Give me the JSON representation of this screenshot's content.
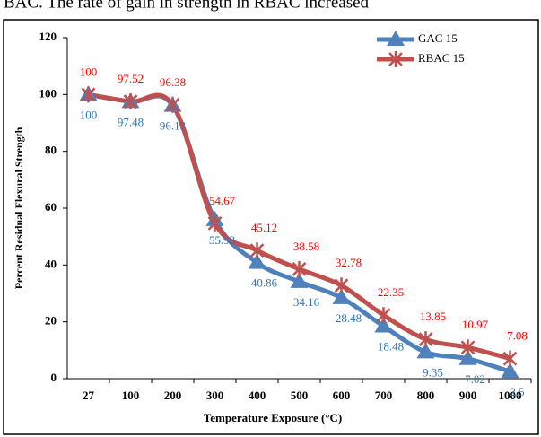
{
  "caption": "BAC. The rate of gain in strength in RBAC increased",
  "chart_data": {
    "type": "line",
    "x_label": "Temperature Exposure (°C)",
    "y_label": "Percent Residual Flexural Strength",
    "categories": [
      "27",
      "100",
      "200",
      "300",
      "400",
      "500",
      "600",
      "700",
      "800",
      "900",
      "1000"
    ],
    "series": [
      {
        "name": "GAC 15",
        "color": "#4f81bd",
        "label_color": "#2e75b6",
        "marker": "triangle",
        "values": [
          100,
          97.48,
          96.13,
          55.93,
          40.86,
          34.16,
          28.48,
          18.48,
          9.35,
          7.02,
          2.5
        ]
      },
      {
        "name": "RBAC 15",
        "color": "#c0504d",
        "label_color": "#ff0000",
        "marker": "star",
        "values": [
          100,
          97.52,
          96.38,
          54.67,
          45.12,
          38.58,
          32.78,
          22.35,
          13.85,
          10.97,
          7.08
        ]
      }
    ],
    "ylim": [
      0,
      120
    ],
    "yticks": [
      0,
      20,
      40,
      60,
      80,
      100,
      120
    ],
    "legend": "top-right"
  }
}
